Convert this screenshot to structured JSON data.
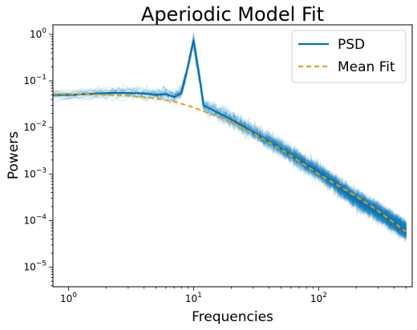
{
  "chart_data": {
    "type": "line",
    "title": "Aperiodic Model Fit",
    "xlabel": "Frequencies",
    "ylabel": "Powers",
    "xscale": "log",
    "yscale": "log",
    "xlim": [
      0.75,
      560
    ],
    "ylim": [
      3.8e-06,
      1.6
    ],
    "xticks": [
      {
        "value": 1,
        "base": "10",
        "exp": "0"
      },
      {
        "value": 10,
        "base": "10",
        "exp": "1"
      },
      {
        "value": 100,
        "base": "10",
        "exp": "2"
      }
    ],
    "yticks": [
      {
        "value": 1e-05,
        "base": "10",
        "exp": "−5"
      },
      {
        "value": 0.0001,
        "base": "10",
        "exp": "−4"
      },
      {
        "value": 0.001,
        "base": "10",
        "exp": "−3"
      },
      {
        "value": 0.01,
        "base": "10",
        "exp": "−2"
      },
      {
        "value": 0.1,
        "base": "10",
        "exp": "−1"
      },
      {
        "value": 1,
        "base": "10",
        "exp": "0"
      }
    ],
    "legend": {
      "position": "upper-right"
    },
    "individual_psds": {
      "count": 20,
      "color": "#0072b2",
      "opacity": 0.12,
      "freq_range": [
        0.75,
        500
      ],
      "peak_hz": 10
    },
    "series": [
      {
        "name": "PSD",
        "color": "#0072b2",
        "style": "solid",
        "x": [
          0.75,
          1,
          1.5,
          2,
          3,
          4,
          5,
          6,
          7,
          8,
          9,
          10,
          11,
          12,
          15,
          20,
          30,
          50,
          100,
          200,
          300,
          500
        ],
        "y": [
          0.05,
          0.05,
          0.052,
          0.055,
          0.055,
          0.054,
          0.05,
          0.052,
          0.045,
          0.055,
          0.2,
          0.75,
          0.15,
          0.03,
          0.022,
          0.015,
          0.008,
          0.0035,
          0.0011,
          0.00028,
          0.00015,
          6e-05
        ]
      },
      {
        "name": "Mean Fit",
        "color": "#e69f00",
        "style": "dashed",
        "x": [
          0.75,
          1,
          1.5,
          2,
          3,
          4,
          5,
          7,
          10,
          15,
          20,
          30,
          50,
          70,
          100,
          150,
          200,
          300,
          500
        ],
        "y": [
          0.052,
          0.052,
          0.051,
          0.05,
          0.048,
          0.045,
          0.042,
          0.036,
          0.027,
          0.018,
          0.013,
          0.0075,
          0.0034,
          0.0019,
          0.001,
          0.00052,
          0.00033,
          0.00016,
          5.8e-05
        ]
      }
    ]
  }
}
